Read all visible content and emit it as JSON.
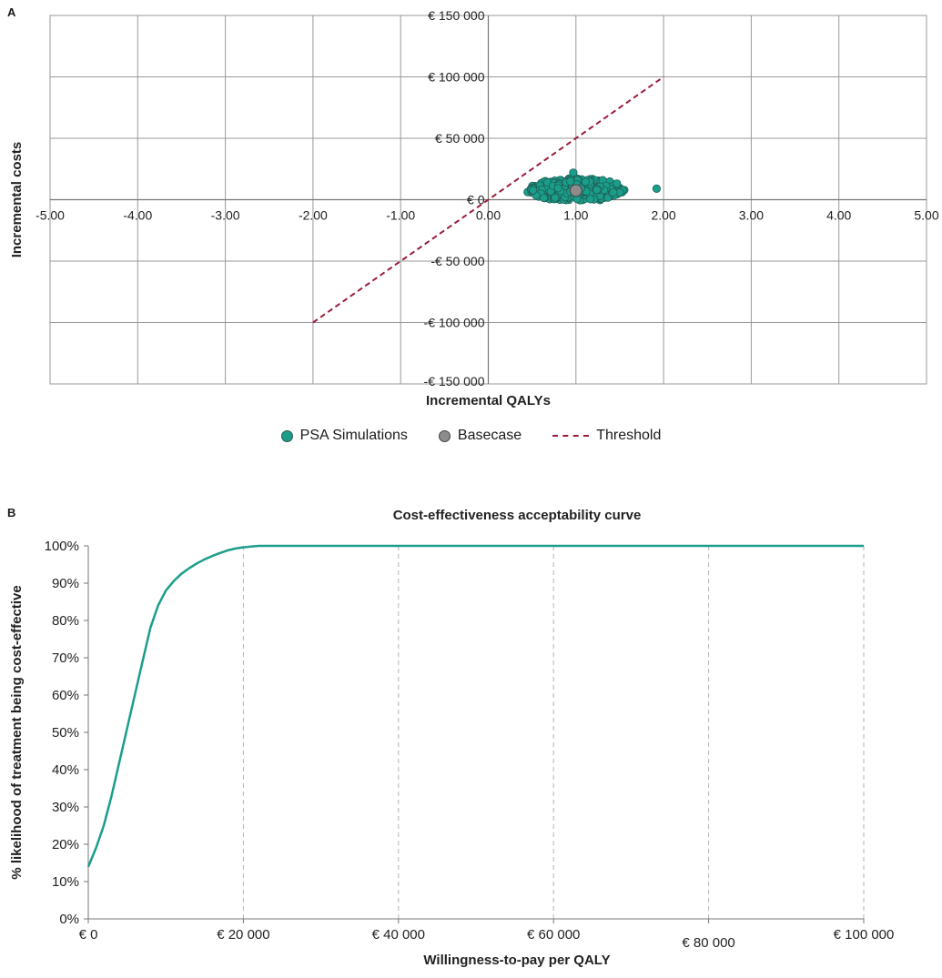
{
  "chart_data": [
    {
      "panel": "A",
      "type": "scatter",
      "xlabel": "Incremental QALYs",
      "ylabel": "Incremental costs",
      "xlim": [
        -5,
        5
      ],
      "ylim": [
        -150000,
        150000
      ],
      "x_ticks": [
        "-5.00",
        "-4.00",
        "-3.00",
        "-2.00",
        "-1.00",
        "0.00",
        "1.00",
        "2.00",
        "3.00",
        "4.00",
        "5.00"
      ],
      "y_ticks": [
        "€ 150 000",
        "€ 100 000",
        "€ 50 000",
        "€ 0",
        "-€ 50 000",
        "-€ 100 000",
        "-€ 150 000"
      ],
      "grid": true,
      "legend_position": "bottom",
      "series": [
        {
          "name": "PSA Simulations",
          "color": "#1a9e8a",
          "cloud": {
            "x_range": [
              0.5,
              1.6
            ],
            "y_range": [
              -1000,
              18000
            ],
            "center": [
              1.0,
              8000
            ]
          },
          "outliers": [
            [
              1.92,
              9000
            ],
            [
              0.97,
              22000
            ]
          ]
        },
        {
          "name": "Basecase",
          "color": "#8c8c8c",
          "points": [
            [
              1.0,
              7500
            ]
          ]
        },
        {
          "name": "Threshold",
          "color": "#9b1c3a",
          "style": "dashed",
          "points": [
            [
              -2,
              -100000
            ],
            [
              2,
              100000
            ]
          ]
        }
      ]
    },
    {
      "panel": "B",
      "type": "line",
      "title": "Cost-effectiveness acceptability curve",
      "xlabel": "Willingness-to-pay per QALY",
      "ylabel": "% likelihood of treatment being cost-effective",
      "xlim": [
        0,
        100000
      ],
      "ylim": [
        0,
        100
      ],
      "x_ticks": [
        "€ 0",
        "€ 20 000",
        "€ 40 000",
        "€ 60 000",
        "€ 80 000",
        "€ 100 000"
      ],
      "y_ticks": [
        "0%",
        "10%",
        "20%",
        "30%",
        "40%",
        "50%",
        "60%",
        "70%",
        "80%",
        "90%",
        "100%"
      ],
      "grid": "vertical-dashed",
      "series": [
        {
          "color": "#1a9e8a",
          "x": [
            0,
            1000,
            2000,
            3000,
            4000,
            5000,
            6000,
            7000,
            8000,
            9000,
            10000,
            11000,
            12000,
            13000,
            14000,
            15000,
            16000,
            17000,
            18000,
            19000,
            20000,
            21000,
            22000,
            30000,
            40000,
            50000,
            60000,
            70000,
            80000,
            90000,
            100000
          ],
          "values": [
            14,
            19,
            25,
            33,
            42,
            51,
            60,
            69,
            78,
            84,
            88,
            90.5,
            92.5,
            94,
            95.3,
            96.4,
            97.3,
            98.1,
            98.8,
            99.3,
            99.6,
            99.8,
            100,
            100,
            100,
            100,
            100,
            100,
            100,
            100,
            100
          ]
        }
      ]
    }
  ],
  "legend": {
    "items": [
      "PSA Simulations",
      "Basecase",
      "Threshold"
    ]
  },
  "labels": {
    "panel_a": "A",
    "panel_b": "B"
  }
}
